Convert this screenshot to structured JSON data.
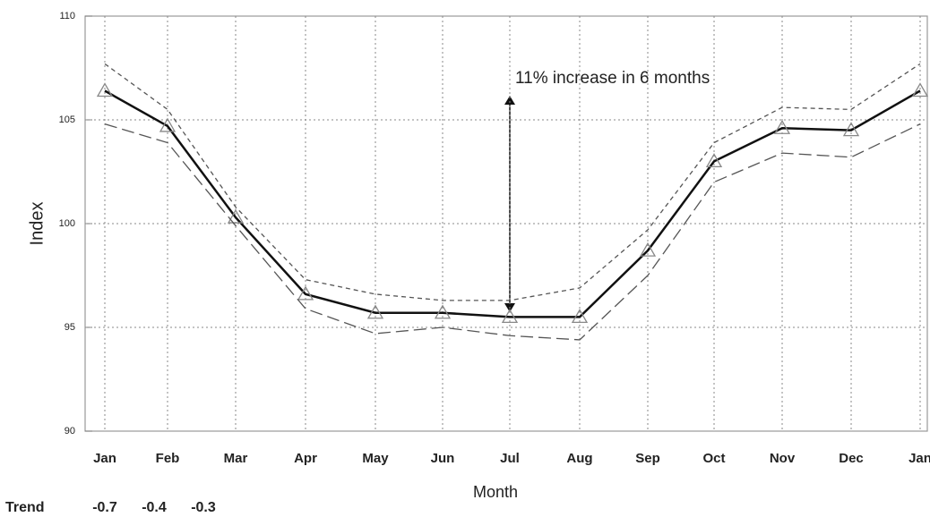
{
  "chart_data": {
    "type": "line",
    "categories": [
      "Jan",
      "Feb",
      "Mar",
      "Apr",
      "May",
      "Jun",
      "Jul",
      "Aug",
      "Sep",
      "Oct",
      "Nov",
      "Dec",
      "Jan"
    ],
    "series": [
      {
        "color": "#111111",
        "line_style": "solid",
        "marker": "triangle",
        "values": [
          106.4,
          104.7,
          100.3,
          96.6,
          95.7,
          95.7,
          95.5,
          95.5,
          98.7,
          103.0,
          104.6,
          104.5,
          106.4
        ]
      },
      {
        "color": "#555555",
        "line_style": "dashed",
        "values": [
          107.7,
          105.5,
          100.8,
          97.3,
          96.6,
          96.3,
          96.3,
          96.9,
          99.7,
          103.9,
          105.6,
          105.5,
          107.7
        ]
      },
      {
        "color": "#555555",
        "line_style": "longdash",
        "values": [
          104.8,
          103.9,
          99.9,
          95.9,
          94.7,
          95.0,
          94.6,
          94.4,
          97.5,
          102.0,
          103.4,
          103.2,
          104.8
        ]
      }
    ],
    "ylim": [
      90,
      110
    ],
    "yticks": [
      90,
      95,
      100,
      105,
      110
    ],
    "grid": true,
    "xlabel": "Month",
    "ylabel": "Index",
    "annotation": "11% increase in 6 months",
    "trend": {
      "label": "Trend",
      "values": [
        -0.7,
        -0.4,
        -0.3
      ]
    }
  }
}
